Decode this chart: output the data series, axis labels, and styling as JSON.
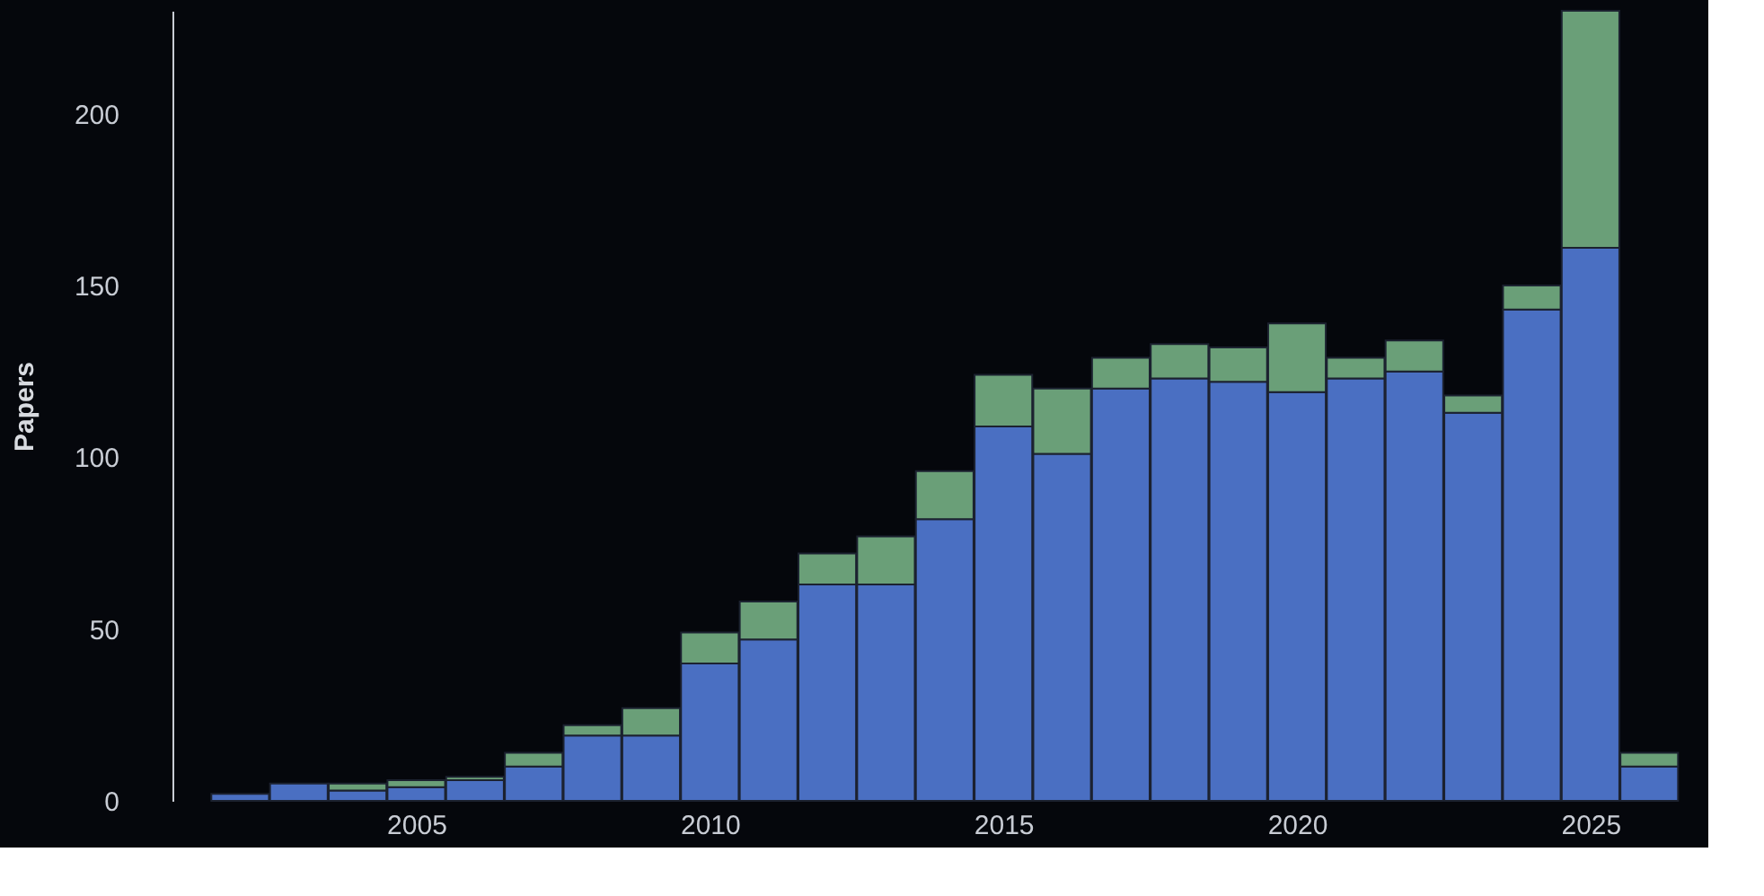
{
  "chart_data": {
    "type": "bar",
    "stacked": true,
    "ylabel": "Papers",
    "x": [
      2002,
      2003,
      2004,
      2005,
      2006,
      2007,
      2008,
      2009,
      2010,
      2011,
      2012,
      2013,
      2014,
      2015,
      2016,
      2017,
      2018,
      2019,
      2020,
      2021,
      2022,
      2023,
      2024,
      2025,
      2026
    ],
    "series": [
      {
        "color": "#4a6fc2",
        "values": [
          2,
          5,
          3,
          4,
          6,
          10,
          19,
          19,
          40,
          47,
          63,
          63,
          82,
          109,
          101,
          120,
          123,
          122,
          119,
          123,
          125,
          113,
          143,
          161,
          10
        ]
      },
      {
        "color": "#6a9f78",
        "values": [
          null,
          null,
          2,
          2,
          1,
          4,
          3,
          8,
          9,
          11,
          9,
          14,
          14,
          15,
          19,
          9,
          10,
          10,
          20,
          6,
          9,
          5,
          7,
          69,
          4
        ]
      }
    ],
    "xlim": [
      2001,
      2026.7
    ],
    "xticks": [
      2005,
      2010,
      2015,
      2020,
      2025
    ],
    "ylim": [
      0,
      230
    ],
    "yticks": [
      0,
      50,
      100,
      150,
      200
    ],
    "grid": false
  }
}
